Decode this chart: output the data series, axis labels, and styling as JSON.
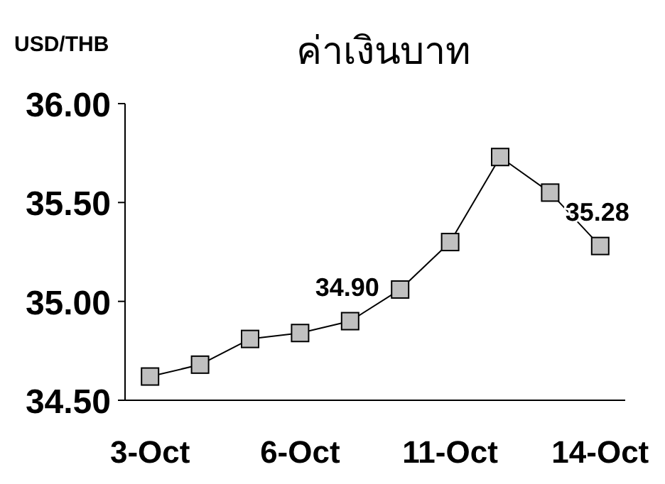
{
  "chart_data": {
    "type": "line",
    "title": "ค่าเงินบาท",
    "ylabel": "USD/THB",
    "categories": [
      "3-Oct",
      null,
      null,
      "6-Oct",
      null,
      null,
      "11-Oct",
      null,
      null,
      "14-Oct"
    ],
    "series": [
      {
        "color": "#c0c0c0",
        "values": [
          34.62,
          34.68,
          34.81,
          34.84,
          34.9,
          35.06,
          35.3,
          35.73,
          35.55,
          35.28
        ],
        "value_labels": [
          null,
          null,
          null,
          null,
          "34.90",
          null,
          null,
          null,
          null,
          "35.28"
        ]
      }
    ],
    "ylim": [
      34.5,
      36.0
    ],
    "yticks": [
      {
        "value": 34.5,
        "label": "34.50"
      },
      {
        "value": 35.0,
        "label": "35.00"
      },
      {
        "value": 35.5,
        "label": "35.50"
      },
      {
        "value": 36.0,
        "label": "36.00"
      }
    ],
    "grid": false,
    "marker": "square",
    "line_style": "solid"
  }
}
